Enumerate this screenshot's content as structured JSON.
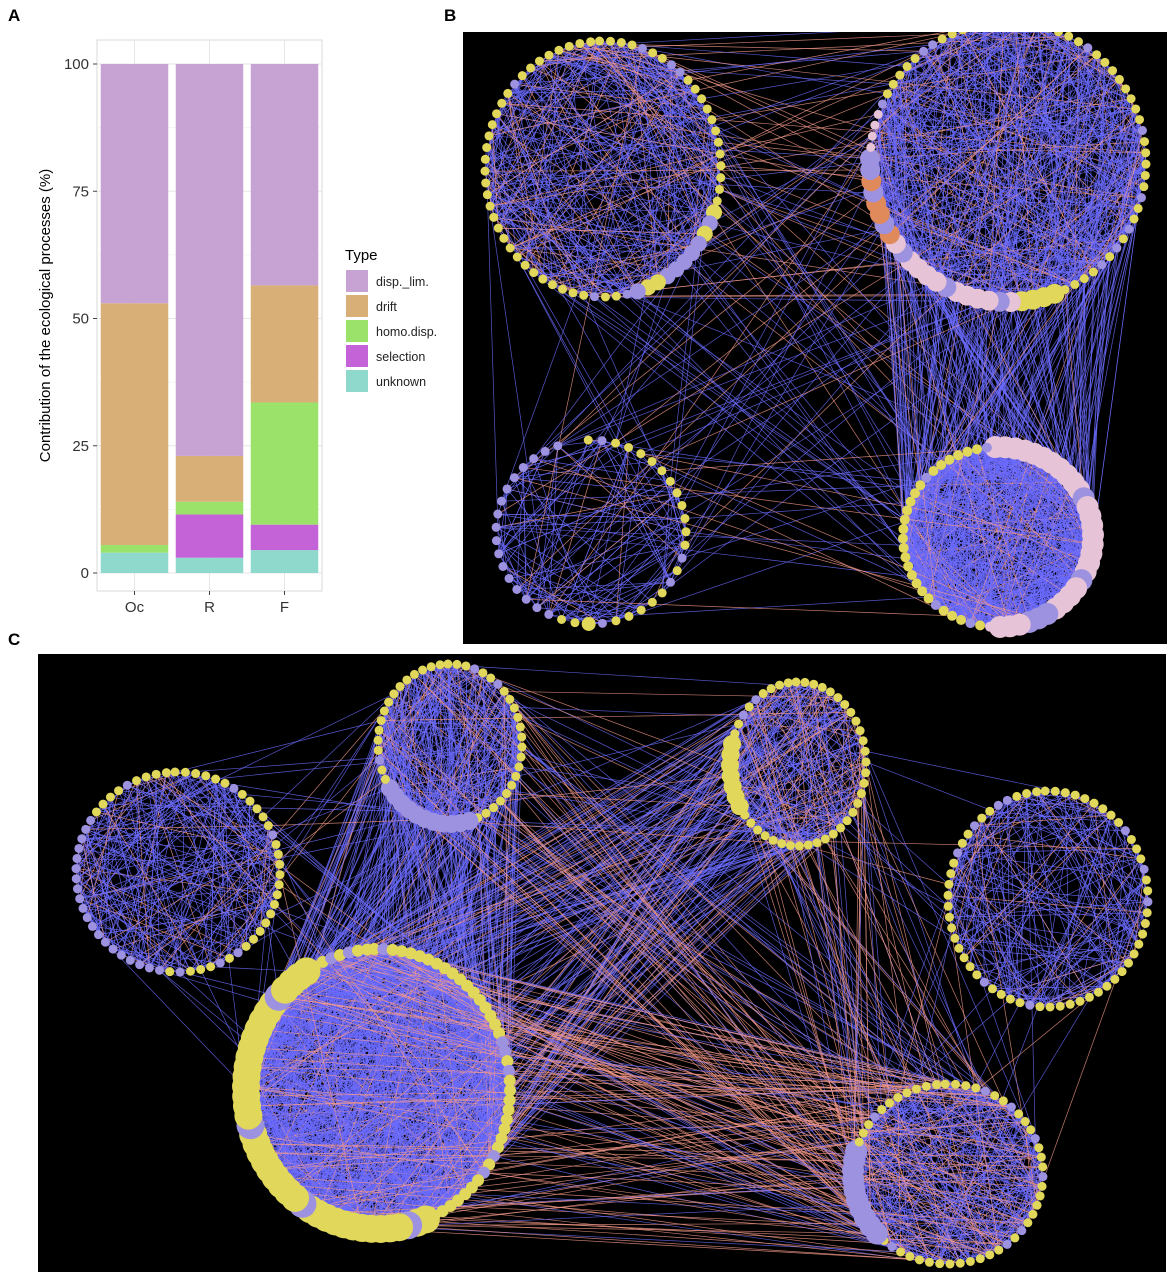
{
  "panels": {
    "a": "A",
    "b": "B",
    "c": "C"
  },
  "colors": {
    "disp_lim": "#c7a3d3",
    "drift": "#d8b077",
    "homo_disp": "#9be26a",
    "selection": "#c463d8",
    "unknown": "#8fd8cc",
    "node_yellow": "#e1d75a",
    "node_purple": "#9d92e0",
    "node_pink": "#e6c3d6",
    "edge_blue": "#6b6bff",
    "edge_salmon": "#f59a8a",
    "network_bg": "#000000"
  },
  "chart_data": {
    "type": "bar",
    "stacked": true,
    "categories": [
      "Oc",
      "R",
      "F"
    ],
    "series": [
      {
        "name": "unknown",
        "values": [
          4,
          3,
          4.5
        ]
      },
      {
        "name": "selection",
        "values": [
          0,
          8.5,
          5
        ]
      },
      {
        "name": "homo.disp.",
        "values": [
          1.5,
          2.5,
          24
        ]
      },
      {
        "name": "drift",
        "values": [
          47.5,
          9,
          23
        ]
      },
      {
        "name": "disp._lim.",
        "values": [
          47,
          77,
          43.5
        ]
      }
    ],
    "xlabel": "",
    "ylabel": "Contribution of the ecological processes (%)",
    "ylim": [
      0,
      100
    ],
    "yticks": [
      0,
      25,
      50,
      75,
      100
    ],
    "legend_title": "Type",
    "legend_order": [
      "disp._lim.",
      "drift",
      "homo.disp.",
      "selection",
      "unknown"
    ],
    "legend_position": "right",
    "grid": true
  }
}
